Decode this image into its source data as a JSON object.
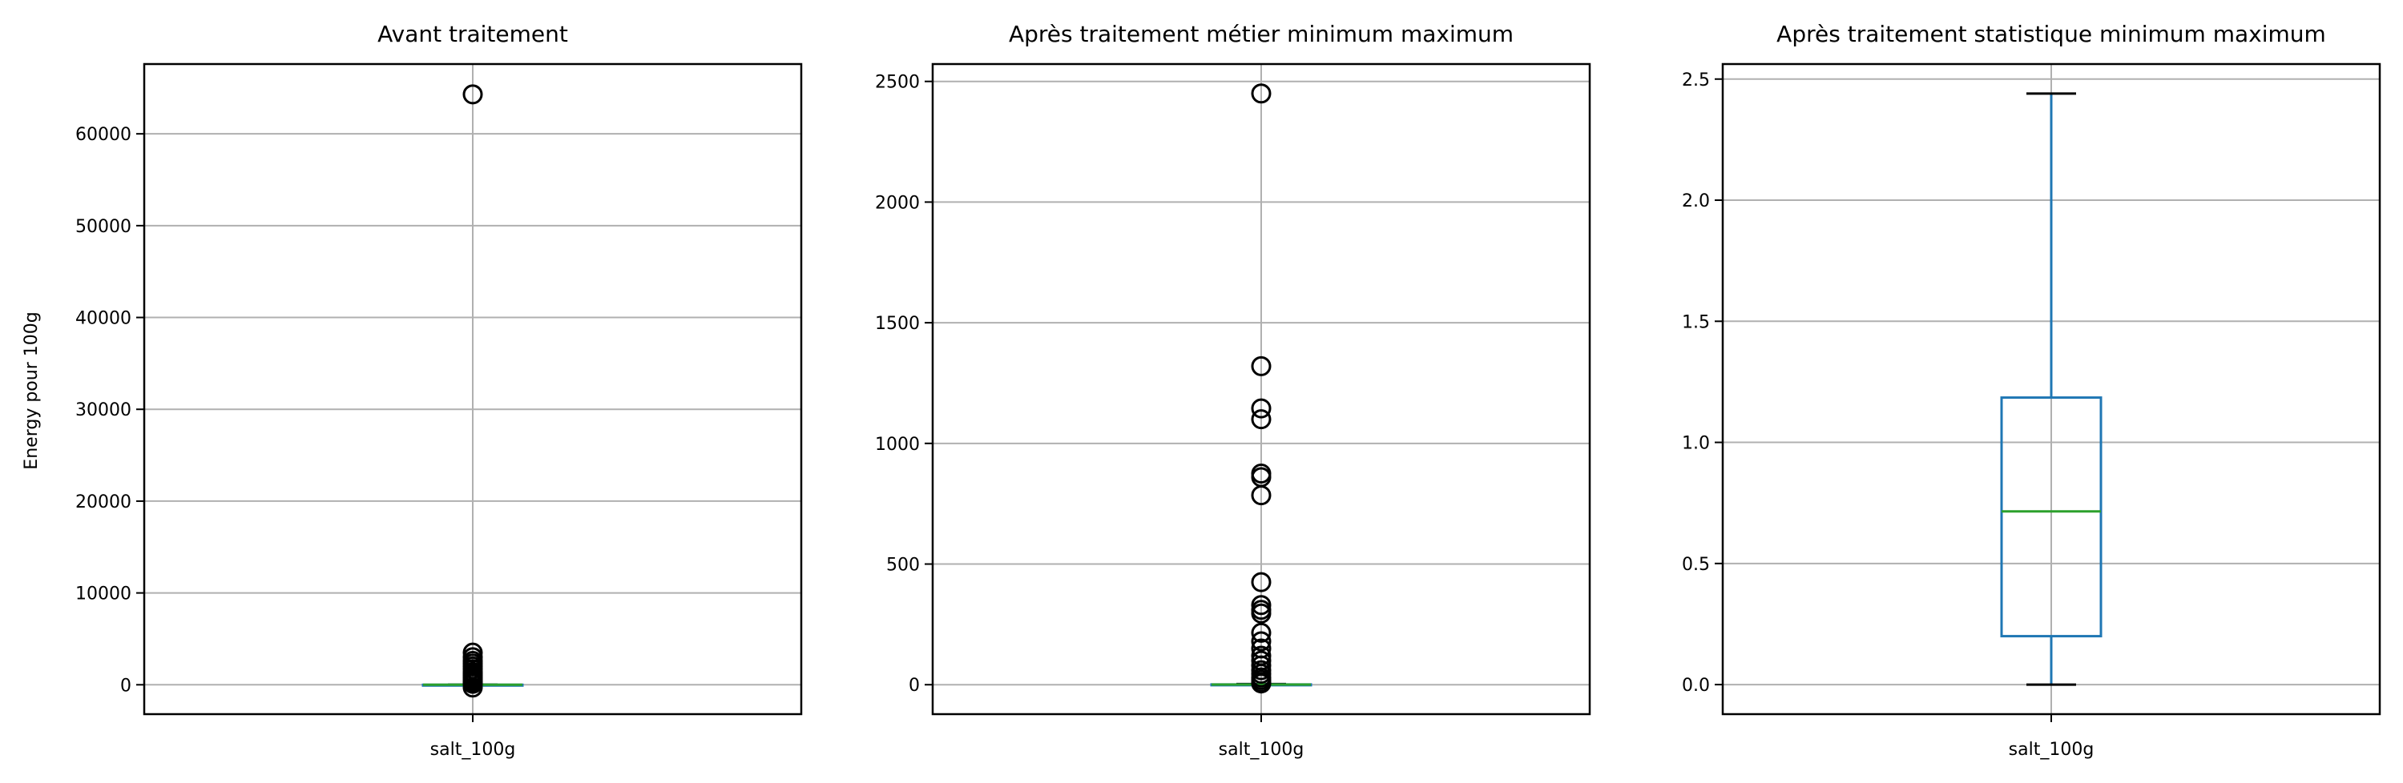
{
  "chart_data": [
    {
      "type": "box",
      "title": "Avant traitement",
      "ylabel": "Energy pour 100g",
      "categories": [
        "salt_100g"
      ],
      "ylim": [
        -3200,
        67600
      ],
      "yticks": [
        0,
        10000,
        20000,
        30000,
        40000,
        50000,
        60000
      ],
      "ytick_labels": [
        "0",
        "10000",
        "20000",
        "30000",
        "40000",
        "50000",
        "60000"
      ],
      "grid": true,
      "box": {
        "whisker_low": 0,
        "q1": 0.3,
        "median": 0.8,
        "q3": 1.3,
        "whisker_high": 2.8
      },
      "outliers": [
        64300,
        3500,
        3000,
        2600,
        2300,
        2000,
        1700,
        1400,
        1200,
        1000,
        800,
        600,
        400,
        200,
        100,
        -300
      ],
      "colors": {
        "box": "#1f77b4",
        "median": "#2ca02c",
        "grid": "#b0b0b0",
        "outlier": "#000000"
      }
    },
    {
      "type": "box",
      "title": "Après traitement métier minimum maximum",
      "ylabel": "",
      "categories": [
        "salt_100g"
      ],
      "ylim": [
        -122,
        2572
      ],
      "yticks": [
        0,
        500,
        1000,
        1500,
        2000,
        2500
      ],
      "ytick_labels": [
        "0",
        "500",
        "1000",
        "1500",
        "2000",
        "2500"
      ],
      "grid": true,
      "box": {
        "whisker_low": 0,
        "q1": 0.2,
        "median": 0.7,
        "q3": 1.2,
        "whisker_high": 2.7
      },
      "outliers": [
        2450,
        1320,
        1145,
        1100,
        875,
        860,
        785,
        425,
        330,
        310,
        295,
        215,
        180,
        150,
        120,
        100,
        80,
        60,
        45,
        30,
        20,
        10,
        5
      ],
      "colors": {
        "box": "#1f77b4",
        "median": "#2ca02c",
        "grid": "#b0b0b0",
        "outlier": "#000000"
      }
    },
    {
      "type": "box",
      "title": "Après traitement statistique minimum maximum",
      "ylabel": "",
      "categories": [
        "salt_100g"
      ],
      "ylim": [
        -0.122,
        2.562
      ],
      "yticks": [
        0,
        0.5,
        1.0,
        1.5,
        2.0,
        2.5
      ],
      "ytick_labels": [
        "0.0",
        "0.5",
        "1.0",
        "1.5",
        "2.0",
        "2.5"
      ],
      "grid": true,
      "box": {
        "whisker_low": 0.0,
        "q1": 0.2,
        "median": 0.715,
        "q3": 1.185,
        "whisker_high": 2.44
      },
      "outliers": [],
      "colors": {
        "box": "#1f77b4",
        "median": "#2ca02c",
        "grid": "#b0b0b0",
        "outlier": "#000000"
      }
    }
  ]
}
